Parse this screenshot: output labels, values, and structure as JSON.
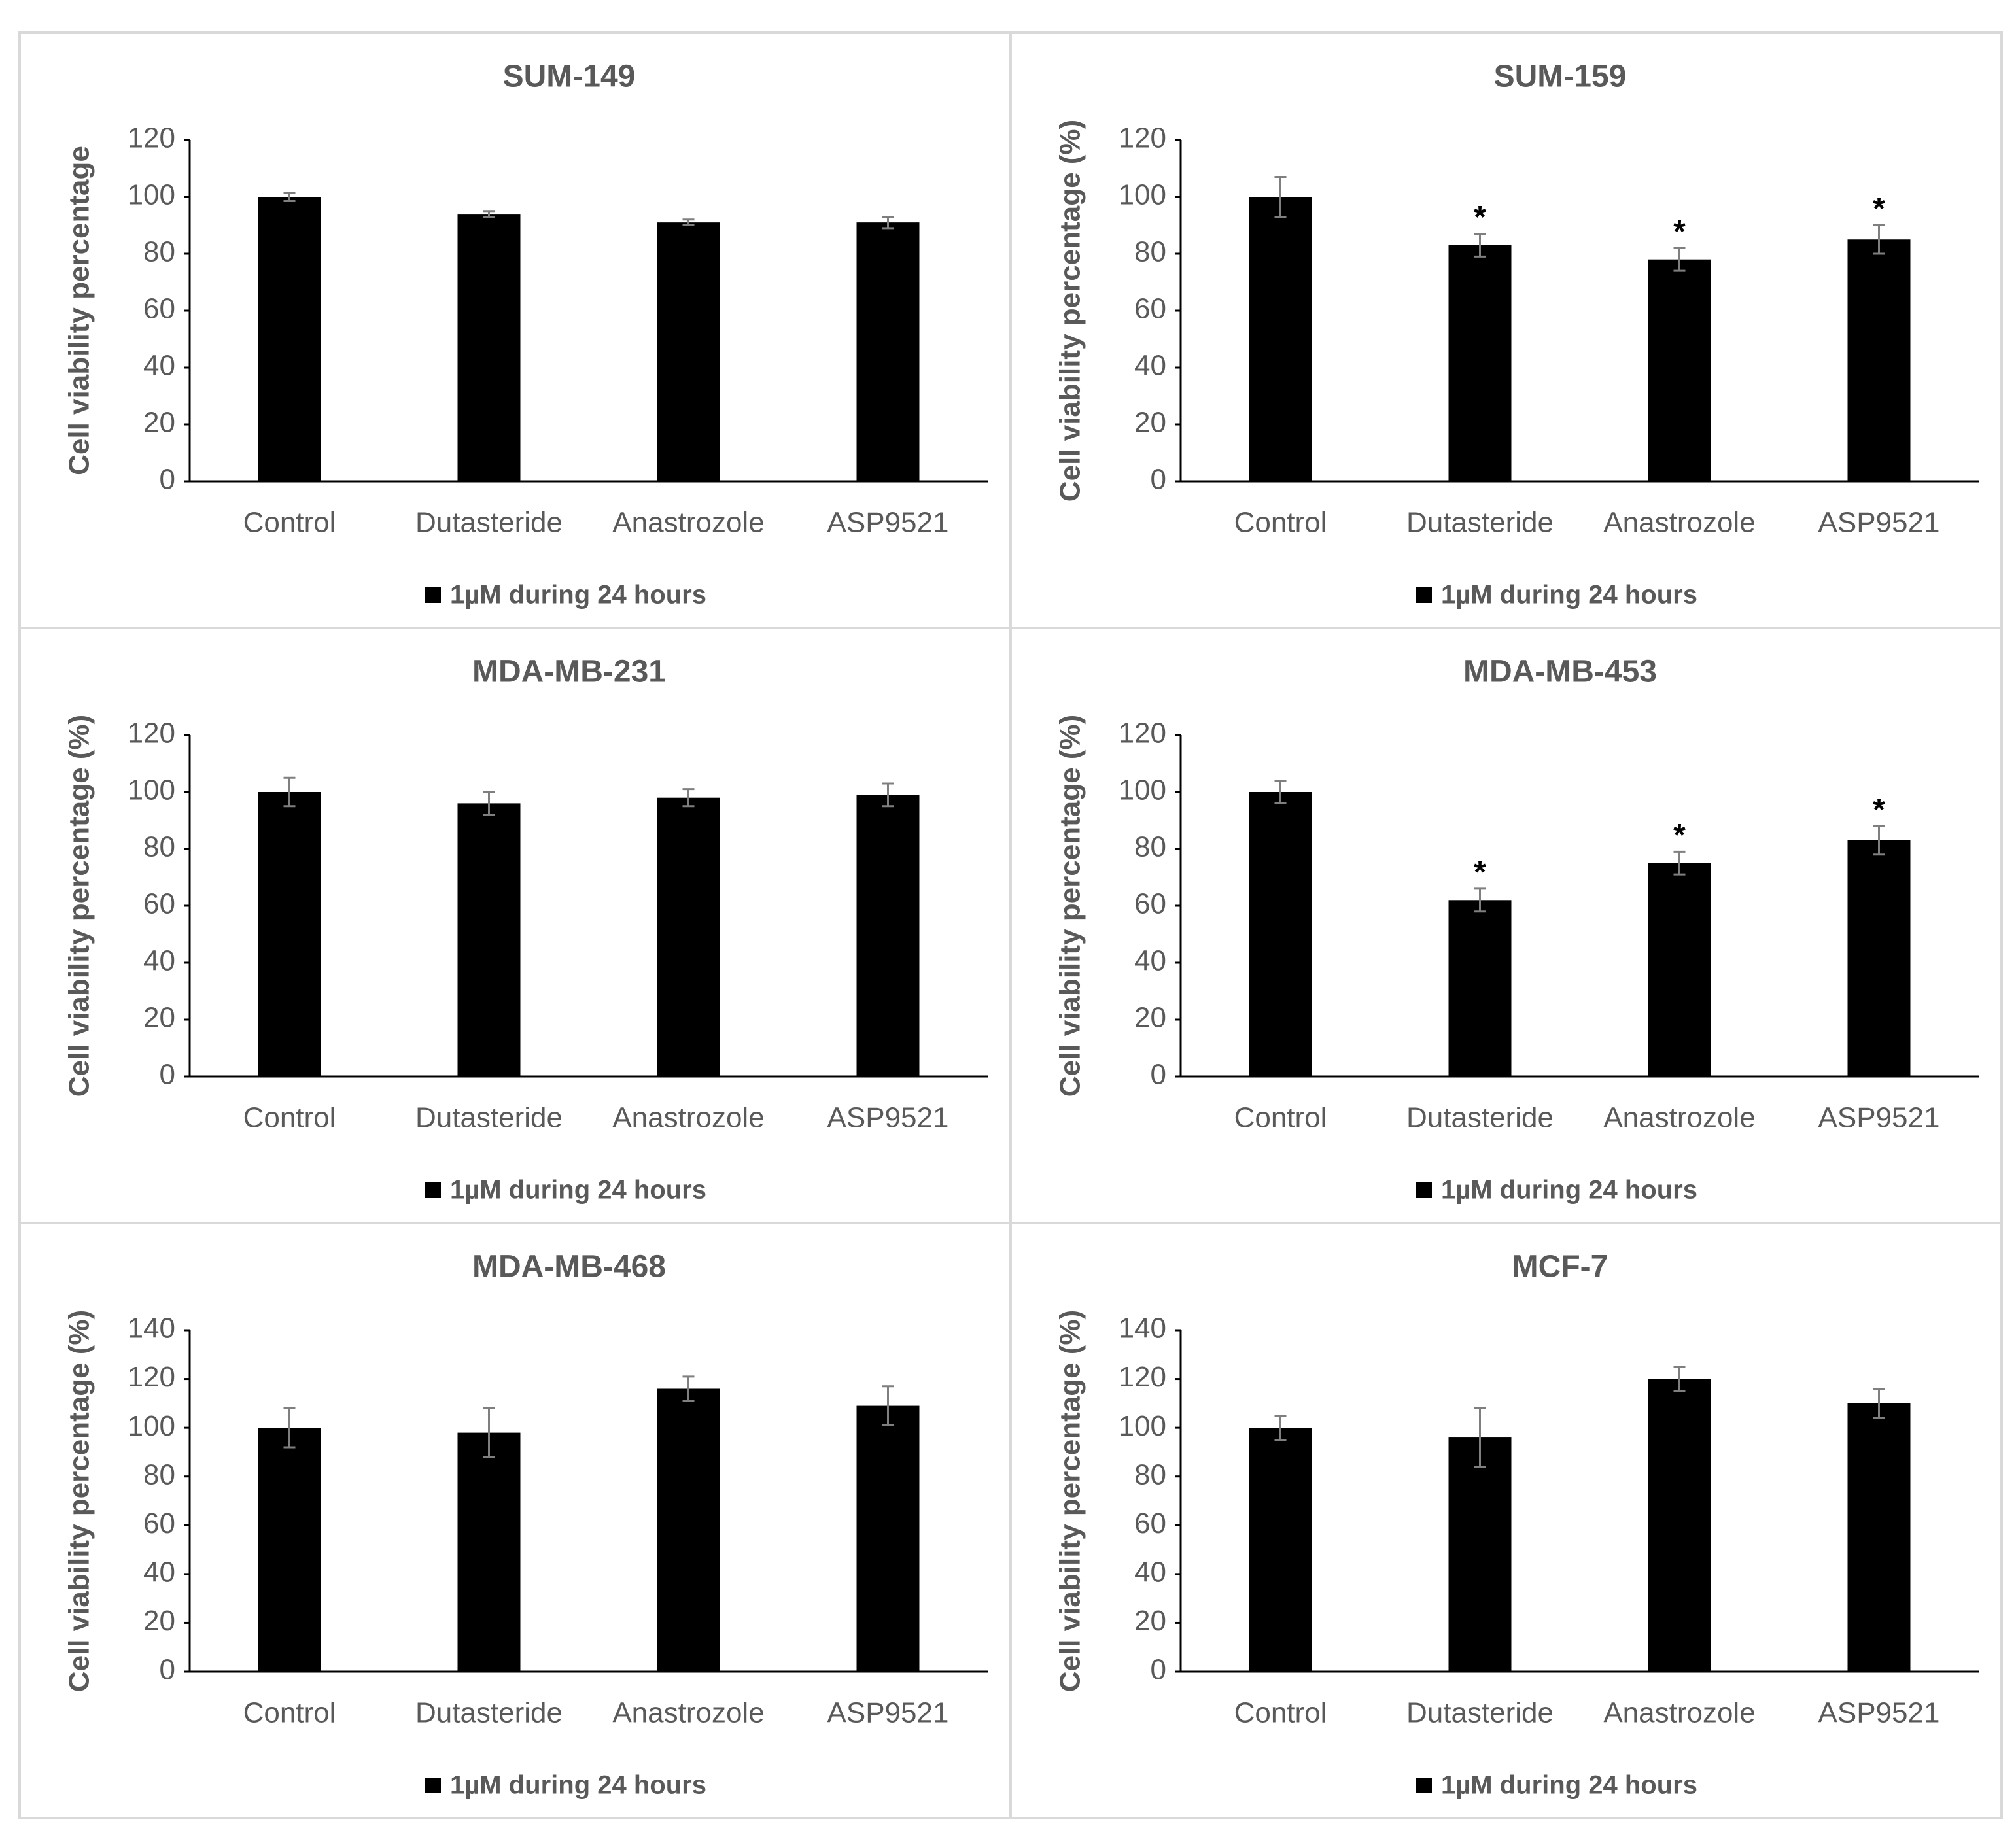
{
  "chart_data": [
    {
      "type": "bar",
      "title": "SUM-149",
      "ylabel": "Cell viability percentage",
      "categories": [
        "Control",
        "Dutasteride",
        "Anastrozole",
        "ASP9521"
      ],
      "series": [
        {
          "name": "1µM during 24 hours",
          "color": "#000000",
          "values": [
            100,
            94,
            91,
            91
          ],
          "errors": [
            1.5,
            1,
            1,
            2
          ]
        }
      ],
      "significance": [
        null,
        null,
        null,
        null
      ],
      "ylim": [
        0,
        120
      ],
      "yticks": [
        0,
        20,
        40,
        60,
        80,
        100,
        120
      ],
      "grid": false
    },
    {
      "type": "bar",
      "title": "SUM-159",
      "ylabel": "Cell viability percentage (%)",
      "categories": [
        "Control",
        "Dutasteride",
        "Anastrozole",
        "ASP9521"
      ],
      "series": [
        {
          "name": "1µM during 24 hours",
          "color": "#000000",
          "values": [
            100,
            83,
            78,
            85
          ],
          "errors": [
            7,
            4,
            4,
            5
          ]
        }
      ],
      "significance": [
        null,
        "*",
        "*",
        "*"
      ],
      "ylim": [
        0,
        120
      ],
      "yticks": [
        0,
        20,
        40,
        60,
        80,
        100,
        120
      ],
      "grid": false
    },
    {
      "type": "bar",
      "title": "MDA-MB-231",
      "ylabel": "Cell viability percentage (%)",
      "categories": [
        "Control",
        "Dutasteride",
        "Anastrozole",
        "ASP9521"
      ],
      "series": [
        {
          "name": "1µM during 24 hours",
          "color": "#000000",
          "values": [
            100,
            96,
            98,
            99
          ],
          "errors": [
            5,
            4,
            3,
            4
          ]
        }
      ],
      "significance": [
        null,
        null,
        null,
        null
      ],
      "ylim": [
        0,
        120
      ],
      "yticks": [
        0,
        20,
        40,
        60,
        80,
        100,
        120
      ],
      "grid": false
    },
    {
      "type": "bar",
      "title": "MDA-MB-453",
      "ylabel": "Cell viability percentage (%)",
      "categories": [
        "Control",
        "Dutasteride",
        "Anastrozole",
        "ASP9521"
      ],
      "series": [
        {
          "name": "1µM during 24 hours",
          "color": "#000000",
          "values": [
            100,
            62,
            75,
            83
          ],
          "errors": [
            4,
            4,
            4,
            5
          ]
        }
      ],
      "significance": [
        null,
        "*",
        "*",
        "*"
      ],
      "ylim": [
        0,
        120
      ],
      "yticks": [
        0,
        20,
        40,
        60,
        80,
        100,
        120
      ],
      "grid": false
    },
    {
      "type": "bar",
      "title": "MDA-MB-468",
      "ylabel": "Cell viability percentage (%)",
      "categories": [
        "Control",
        "Dutasteride",
        "Anastrozole",
        "ASP9521"
      ],
      "series": [
        {
          "name": "1µM during 24 hours",
          "color": "#000000",
          "values": [
            100,
            98,
            116,
            109
          ],
          "errors": [
            8,
            10,
            5,
            8
          ]
        }
      ],
      "significance": [
        null,
        null,
        null,
        null
      ],
      "ylim": [
        0,
        140
      ],
      "yticks": [
        0,
        20,
        40,
        60,
        80,
        100,
        120,
        140
      ],
      "grid": false
    },
    {
      "type": "bar",
      "title": "MCF-7",
      "ylabel": "Cell viability percentage (%)",
      "categories": [
        "Control",
        "Dutasteride",
        "Anastrozole",
        "ASP9521"
      ],
      "series": [
        {
          "name": "1µM during 24 hours",
          "color": "#000000",
          "values": [
            100,
            96,
            120,
            110
          ],
          "errors": [
            5,
            12,
            5,
            6
          ]
        }
      ],
      "significance": [
        null,
        null,
        null,
        null
      ],
      "ylim": [
        0,
        140
      ],
      "yticks": [
        0,
        20,
        40,
        60,
        80,
        100,
        120,
        140
      ],
      "grid": false
    }
  ]
}
